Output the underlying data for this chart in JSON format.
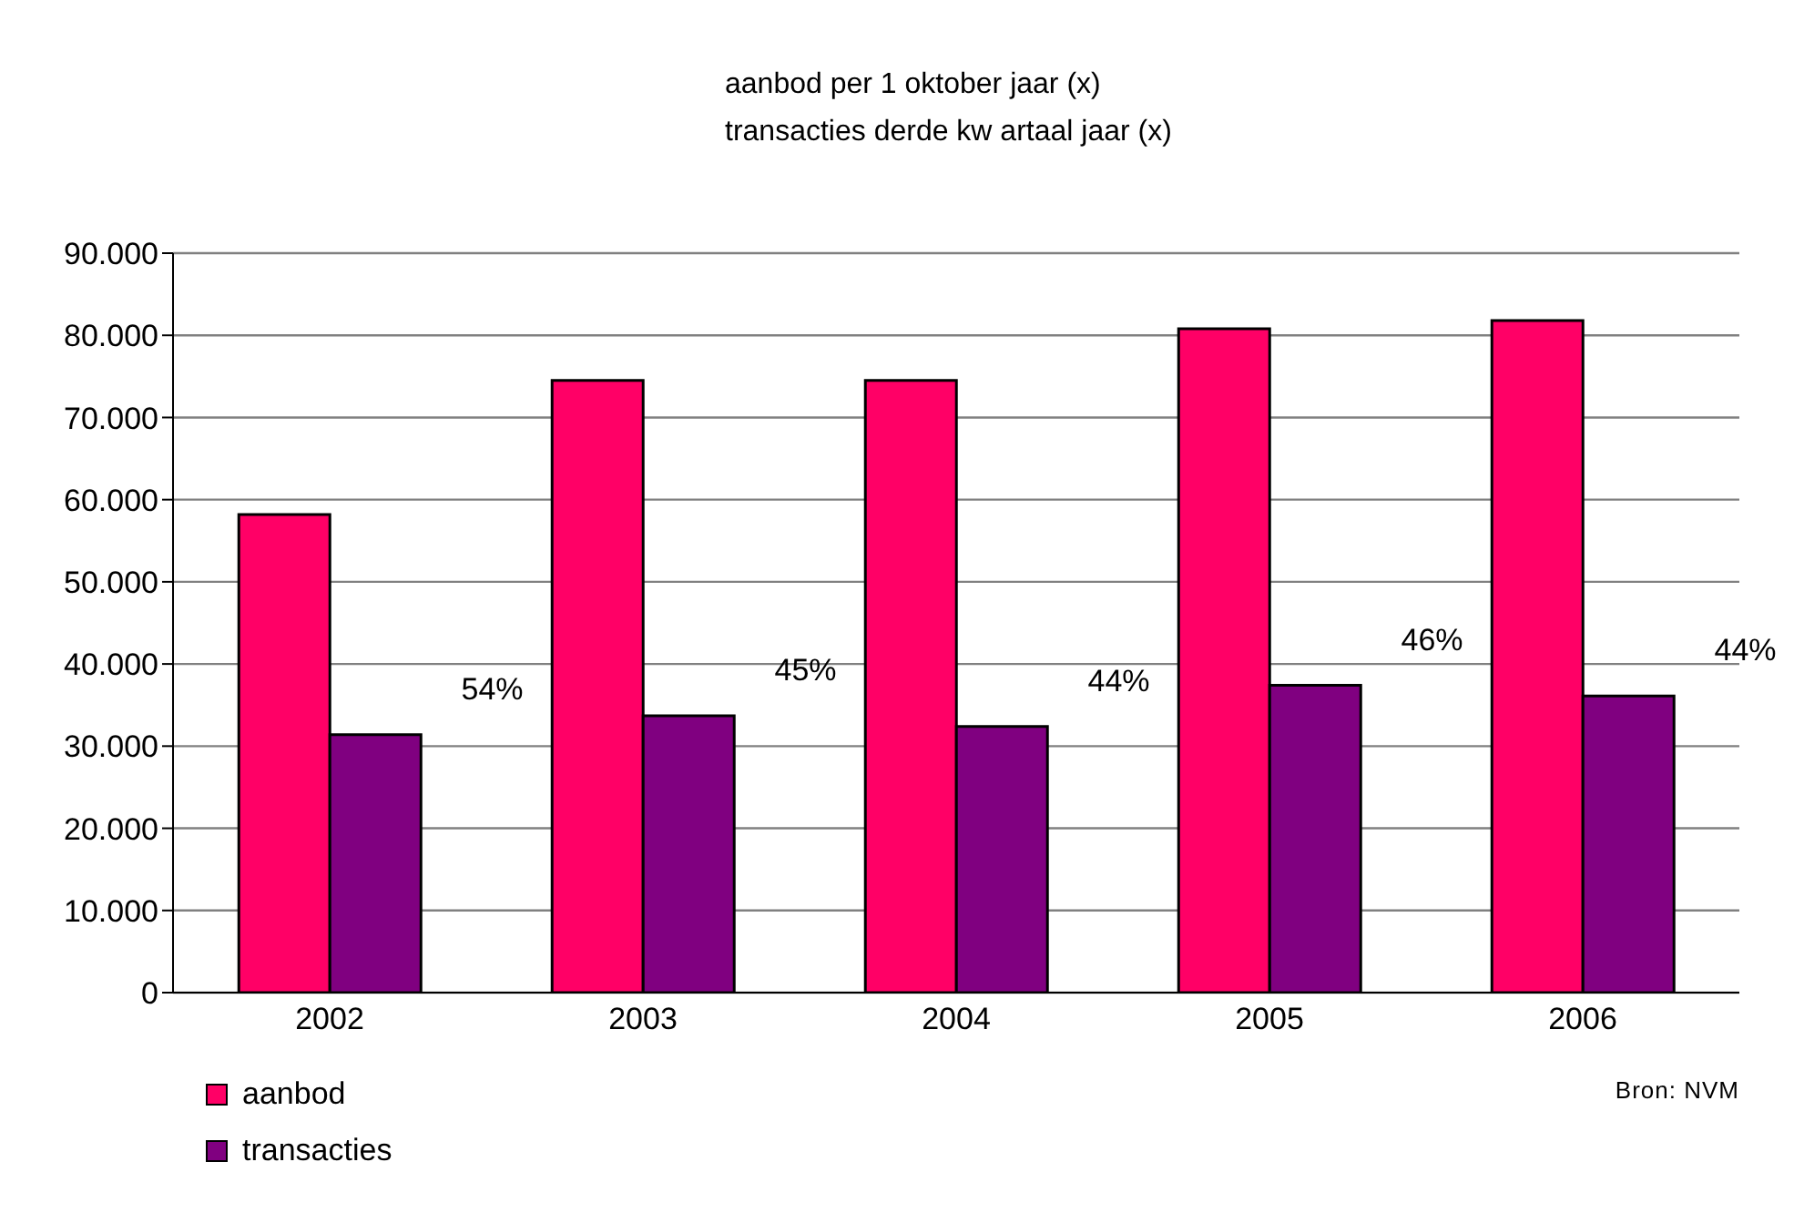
{
  "chart_data": {
    "type": "bar",
    "title": "aanbod per 1 oktober jaar (x)",
    "subtitle": "transacties derde kw artaal jaar (x)",
    "categories": [
      "2002",
      "2003",
      "2004",
      "2005",
      "2006"
    ],
    "series": [
      {
        "name": "aanbod",
        "color": "#ff0066",
        "values": [
          58200,
          74500,
          74500,
          80800,
          81800
        ]
      },
      {
        "name": "transacties",
        "color": "#800080",
        "values": [
          31400,
          33700,
          32400,
          37400,
          36100
        ]
      }
    ],
    "ylim": [
      0,
      90000
    ],
    "yticks": [
      {
        "value": 0,
        "label": "0"
      },
      {
        "value": 10000,
        "label": "10.000"
      },
      {
        "value": 20000,
        "label": "20.000"
      },
      {
        "value": 30000,
        "label": "30.000"
      },
      {
        "value": 40000,
        "label": "40.000"
      },
      {
        "value": 50000,
        "label": "50.000"
      },
      {
        "value": 60000,
        "label": "60.000"
      },
      {
        "value": 70000,
        "label": "70.000"
      },
      {
        "value": 80000,
        "label": "80.000"
      },
      {
        "value": 90000,
        "label": "90.000"
      }
    ],
    "grid": "y",
    "legend": "bottom left",
    "annotations": [
      "54%",
      "45%",
      "44%",
      "46%",
      "44%",
      "Bron: NVM"
    ]
  }
}
